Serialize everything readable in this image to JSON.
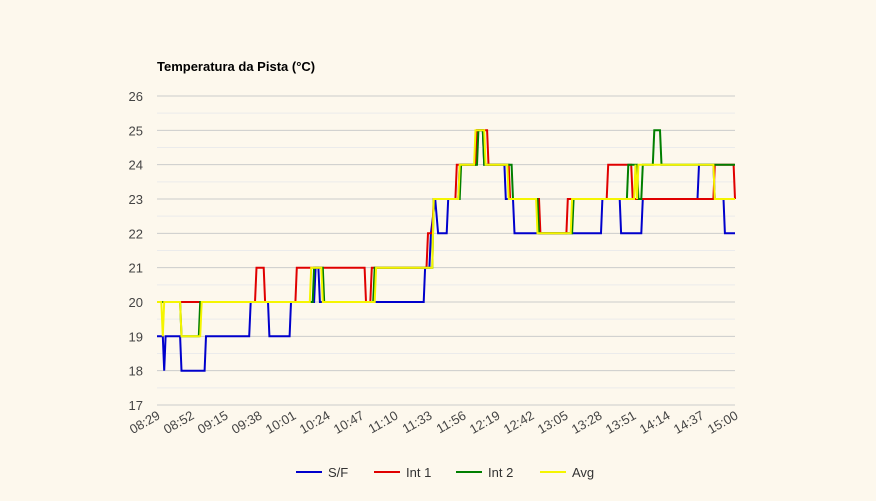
{
  "chart_data": {
    "type": "line",
    "title": "Temperatura da Pista (°C)",
    "xlabel": "",
    "ylabel": "",
    "ylim": [
      17,
      26
    ],
    "yticks": [
      17,
      18,
      19,
      20,
      21,
      22,
      23,
      24,
      25,
      26
    ],
    "grid": true,
    "legend_position": "bottom",
    "x_unit": "minutes since first tick (08:29)",
    "x_range": [
      0,
      401
    ],
    "x_ticks": [
      "08:29",
      "08:52",
      "09:15",
      "09:38",
      "10:01",
      "10:24",
      "10:47",
      "11:10",
      "11:33",
      "11:56",
      "12:19",
      "12:42",
      "13:05",
      "13:28",
      "13:51",
      "14:14",
      "14:37",
      "15:00"
    ],
    "series": [
      {
        "name": "S/F",
        "color": "#0000cc",
        "points": [
          [
            0,
            19
          ],
          [
            4,
            19
          ],
          [
            5,
            18
          ],
          [
            6,
            19
          ],
          [
            16,
            19
          ],
          [
            17,
            18
          ],
          [
            33,
            18
          ],
          [
            34,
            19
          ],
          [
            64,
            19
          ],
          [
            65,
            20
          ],
          [
            77,
            20
          ],
          [
            78,
            19
          ],
          [
            92,
            19
          ],
          [
            93,
            20
          ],
          [
            109,
            20
          ],
          [
            110,
            21
          ],
          [
            112,
            21
          ],
          [
            113,
            20
          ],
          [
            185,
            20
          ],
          [
            186,
            21
          ],
          [
            189,
            21
          ],
          [
            190,
            22
          ],
          [
            193,
            23
          ],
          [
            195,
            22
          ],
          [
            201,
            22
          ],
          [
            202,
            23
          ],
          [
            209,
            23
          ],
          [
            210,
            24
          ],
          [
            221,
            24
          ],
          [
            222,
            25
          ],
          [
            226,
            25
          ],
          [
            227,
            24
          ],
          [
            241,
            24
          ],
          [
            242,
            23
          ],
          [
            247,
            23
          ],
          [
            248,
            22
          ],
          [
            308,
            22
          ],
          [
            309,
            23
          ],
          [
            321,
            23
          ],
          [
            322,
            22
          ],
          [
            336,
            22
          ],
          [
            337,
            23
          ],
          [
            375,
            23
          ],
          [
            376,
            24
          ],
          [
            386,
            24
          ],
          [
            387,
            23
          ],
          [
            393,
            23
          ],
          [
            394,
            22
          ],
          [
            401,
            22
          ]
        ]
      },
      {
        "name": "Int 1",
        "color": "#e00000",
        "points": [
          [
            0,
            20
          ],
          [
            68,
            20
          ],
          [
            69,
            21
          ],
          [
            74,
            21
          ],
          [
            75,
            20
          ],
          [
            96,
            20
          ],
          [
            97,
            21
          ],
          [
            144,
            21
          ],
          [
            145,
            20
          ],
          [
            148,
            20
          ],
          [
            149,
            21
          ],
          [
            187,
            21
          ],
          [
            188,
            22
          ],
          [
            191,
            22
          ],
          [
            192,
            23
          ],
          [
            207,
            23
          ],
          [
            208,
            24
          ],
          [
            221,
            24
          ],
          [
            222,
            25
          ],
          [
            229,
            25
          ],
          [
            230,
            24
          ],
          [
            244,
            24
          ],
          [
            245,
            23
          ],
          [
            265,
            23
          ],
          [
            266,
            22
          ],
          [
            284,
            22
          ],
          [
            285,
            23
          ],
          [
            312,
            23
          ],
          [
            313,
            24
          ],
          [
            329,
            24
          ],
          [
            330,
            23
          ],
          [
            386,
            23
          ],
          [
            387,
            24
          ],
          [
            400,
            24
          ],
          [
            401,
            23
          ]
        ]
      },
      {
        "name": "Int 2",
        "color": "#007f00",
        "points": [
          [
            0,
            20
          ],
          [
            16,
            20
          ],
          [
            17,
            19
          ],
          [
            29,
            19
          ],
          [
            30,
            20
          ],
          [
            108,
            20
          ],
          [
            109,
            21
          ],
          [
            115,
            21
          ],
          [
            116,
            20
          ],
          [
            150,
            20
          ],
          [
            151,
            21
          ],
          [
            191,
            21
          ],
          [
            192,
            23
          ],
          [
            210,
            23
          ],
          [
            211,
            24
          ],
          [
            222,
            24
          ],
          [
            223,
            25
          ],
          [
            226,
            25
          ],
          [
            227,
            24
          ],
          [
            246,
            24
          ],
          [
            247,
            23
          ],
          [
            264,
            23
          ],
          [
            265,
            22
          ],
          [
            288,
            22
          ],
          [
            289,
            23
          ],
          [
            326,
            23
          ],
          [
            327,
            24
          ],
          [
            333,
            24
          ],
          [
            334,
            23
          ],
          [
            336,
            23
          ],
          [
            337,
            24
          ],
          [
            344,
            24
          ],
          [
            345,
            25
          ],
          [
            349,
            25
          ],
          [
            350,
            24
          ],
          [
            401,
            24
          ]
        ]
      },
      {
        "name": "Avg",
        "color": "#f5f500",
        "points": [
          [
            0,
            20
          ],
          [
            3,
            20
          ],
          [
            4,
            19
          ],
          [
            5,
            20
          ],
          [
            16,
            20
          ],
          [
            17,
            19
          ],
          [
            30,
            19
          ],
          [
            31,
            20
          ],
          [
            106,
            20
          ],
          [
            107,
            21
          ],
          [
            114,
            21
          ],
          [
            115,
            20
          ],
          [
            151,
            20
          ],
          [
            152,
            21
          ],
          [
            191,
            21
          ],
          [
            192,
            23
          ],
          [
            209,
            23
          ],
          [
            210,
            24
          ],
          [
            220,
            24
          ],
          [
            221,
            25
          ],
          [
            227,
            25
          ],
          [
            228,
            24
          ],
          [
            243,
            24
          ],
          [
            244,
            23
          ],
          [
            263,
            23
          ],
          [
            264,
            22
          ],
          [
            287,
            22
          ],
          [
            288,
            23
          ],
          [
            331,
            23
          ],
          [
            332,
            24
          ],
          [
            333,
            23
          ],
          [
            334,
            24
          ],
          [
            386,
            24
          ],
          [
            387,
            23
          ],
          [
            401,
            23
          ]
        ]
      }
    ]
  }
}
